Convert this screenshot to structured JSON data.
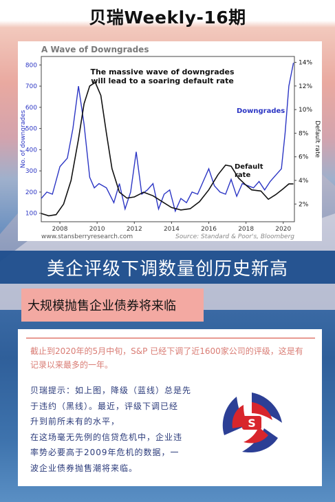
{
  "page": {
    "title": "贝瑞Weekly-16期"
  },
  "chart_data": {
    "type": "line",
    "title": "A Wave of Downgrades",
    "annotation": "The massive wave of downgrades\nwill lead to a soaring default rate",
    "ylabel_left": "No. of downgrades",
    "ylabel_right": "Default rate",
    "ylim_left": [
      60,
      840
    ],
    "ylim_right": [
      0.5,
      14.5
    ],
    "xlim": [
      2007,
      2020.6
    ],
    "x_ticks": [
      "2008",
      "2010",
      "2012",
      "2014",
      "2016",
      "2018",
      "2020"
    ],
    "y_left_ticks": [
      "100",
      "200",
      "300",
      "400",
      "500",
      "600",
      "700",
      "800"
    ],
    "y_right_ticks": [
      "2%",
      "4%",
      "6%",
      "8%",
      "10%",
      "12%",
      "14%"
    ],
    "footer_left": "www.stansberryresearch.com",
    "footer_right": "Source: Standard & Poor's, Bloomberg",
    "series": [
      {
        "name": "Downgrades",
        "axis": "left",
        "color": "#2b35c4",
        "x": [
          2007.0,
          2007.3,
          2007.6,
          2008.0,
          2008.4,
          2008.7,
          2009.0,
          2009.3,
          2009.6,
          2009.85,
          2010.1,
          2010.5,
          2010.9,
          2011.2,
          2011.5,
          2011.8,
          2012.1,
          2012.4,
          2012.7,
          2013.0,
          2013.3,
          2013.6,
          2013.9,
          2014.2,
          2014.5,
          2014.8,
          2015.1,
          2015.4,
          2015.7,
          2016.0,
          2016.3,
          2016.6,
          2016.9,
          2017.2,
          2017.5,
          2017.8,
          2018.1,
          2018.4,
          2018.7,
          2019.0,
          2019.3,
          2019.6,
          2019.9,
          2020.1,
          2020.3,
          2020.55
        ],
        "values": [
          170,
          200,
          190,
          320,
          360,
          500,
          700,
          520,
          270,
          220,
          240,
          220,
          150,
          240,
          120,
          200,
          390,
          190,
          210,
          240,
          120,
          190,
          210,
          110,
          170,
          150,
          200,
          190,
          250,
          310,
          230,
          200,
          190,
          260,
          180,
          240,
          230,
          220,
          250,
          210,
          250,
          280,
          310,
          480,
          700,
          810
        ]
      },
      {
        "name": "Default rate",
        "axis": "right",
        "color": "#111111",
        "x": [
          2007.0,
          2007.4,
          2007.8,
          2008.2,
          2008.6,
          2009.0,
          2009.3,
          2009.6,
          2009.9,
          2010.2,
          2010.5,
          2010.8,
          2011.2,
          2011.6,
          2012.0,
          2012.5,
          2013.0,
          2013.5,
          2014.0,
          2014.5,
          2015.0,
          2015.5,
          2016.0,
          2016.5,
          2016.9,
          2017.2,
          2017.6,
          2018.0,
          2018.3,
          2018.8,
          2019.2,
          2019.6,
          2020.0,
          2020.3,
          2020.55
        ],
        "values": [
          1.2,
          1.0,
          1.1,
          2.0,
          4.0,
          7.5,
          10.5,
          12.0,
          12.3,
          11.2,
          8.0,
          5.0,
          3.0,
          2.5,
          2.6,
          3.0,
          2.7,
          2.2,
          1.7,
          1.5,
          1.6,
          2.2,
          3.2,
          4.5,
          5.3,
          5.2,
          4.2,
          3.6,
          3.2,
          3.1,
          2.4,
          2.8,
          3.3,
          3.7,
          3.7
        ]
      }
    ],
    "legend_labels": [
      "Downgrades",
      "Default\nrate"
    ]
  },
  "headline": "美企评级下调数量创历史新高",
  "subheadline": "大规模抛售企业债券将来临",
  "summary": "截止到2020年的5月中旬，S&P 已经下调了近1600家公司的评级，这是有记录以来最多的一年。",
  "tips": [
    "贝瑞提示：如上图，降级（蓝线）总是先",
    "于违约（黑线）。最近，评级下调已经",
    "升到前所未有的水平，",
    "在这场毫无先例的信贷危机中，企业违",
    "率势必要高于2009年危机的数据，一",
    "波企业债券抛售潮将来临。"
  ],
  "logo": {
    "colors": {
      "blue": "#2c3f95",
      "red": "#d8262c"
    },
    "icon": "company-logo-icon"
  }
}
